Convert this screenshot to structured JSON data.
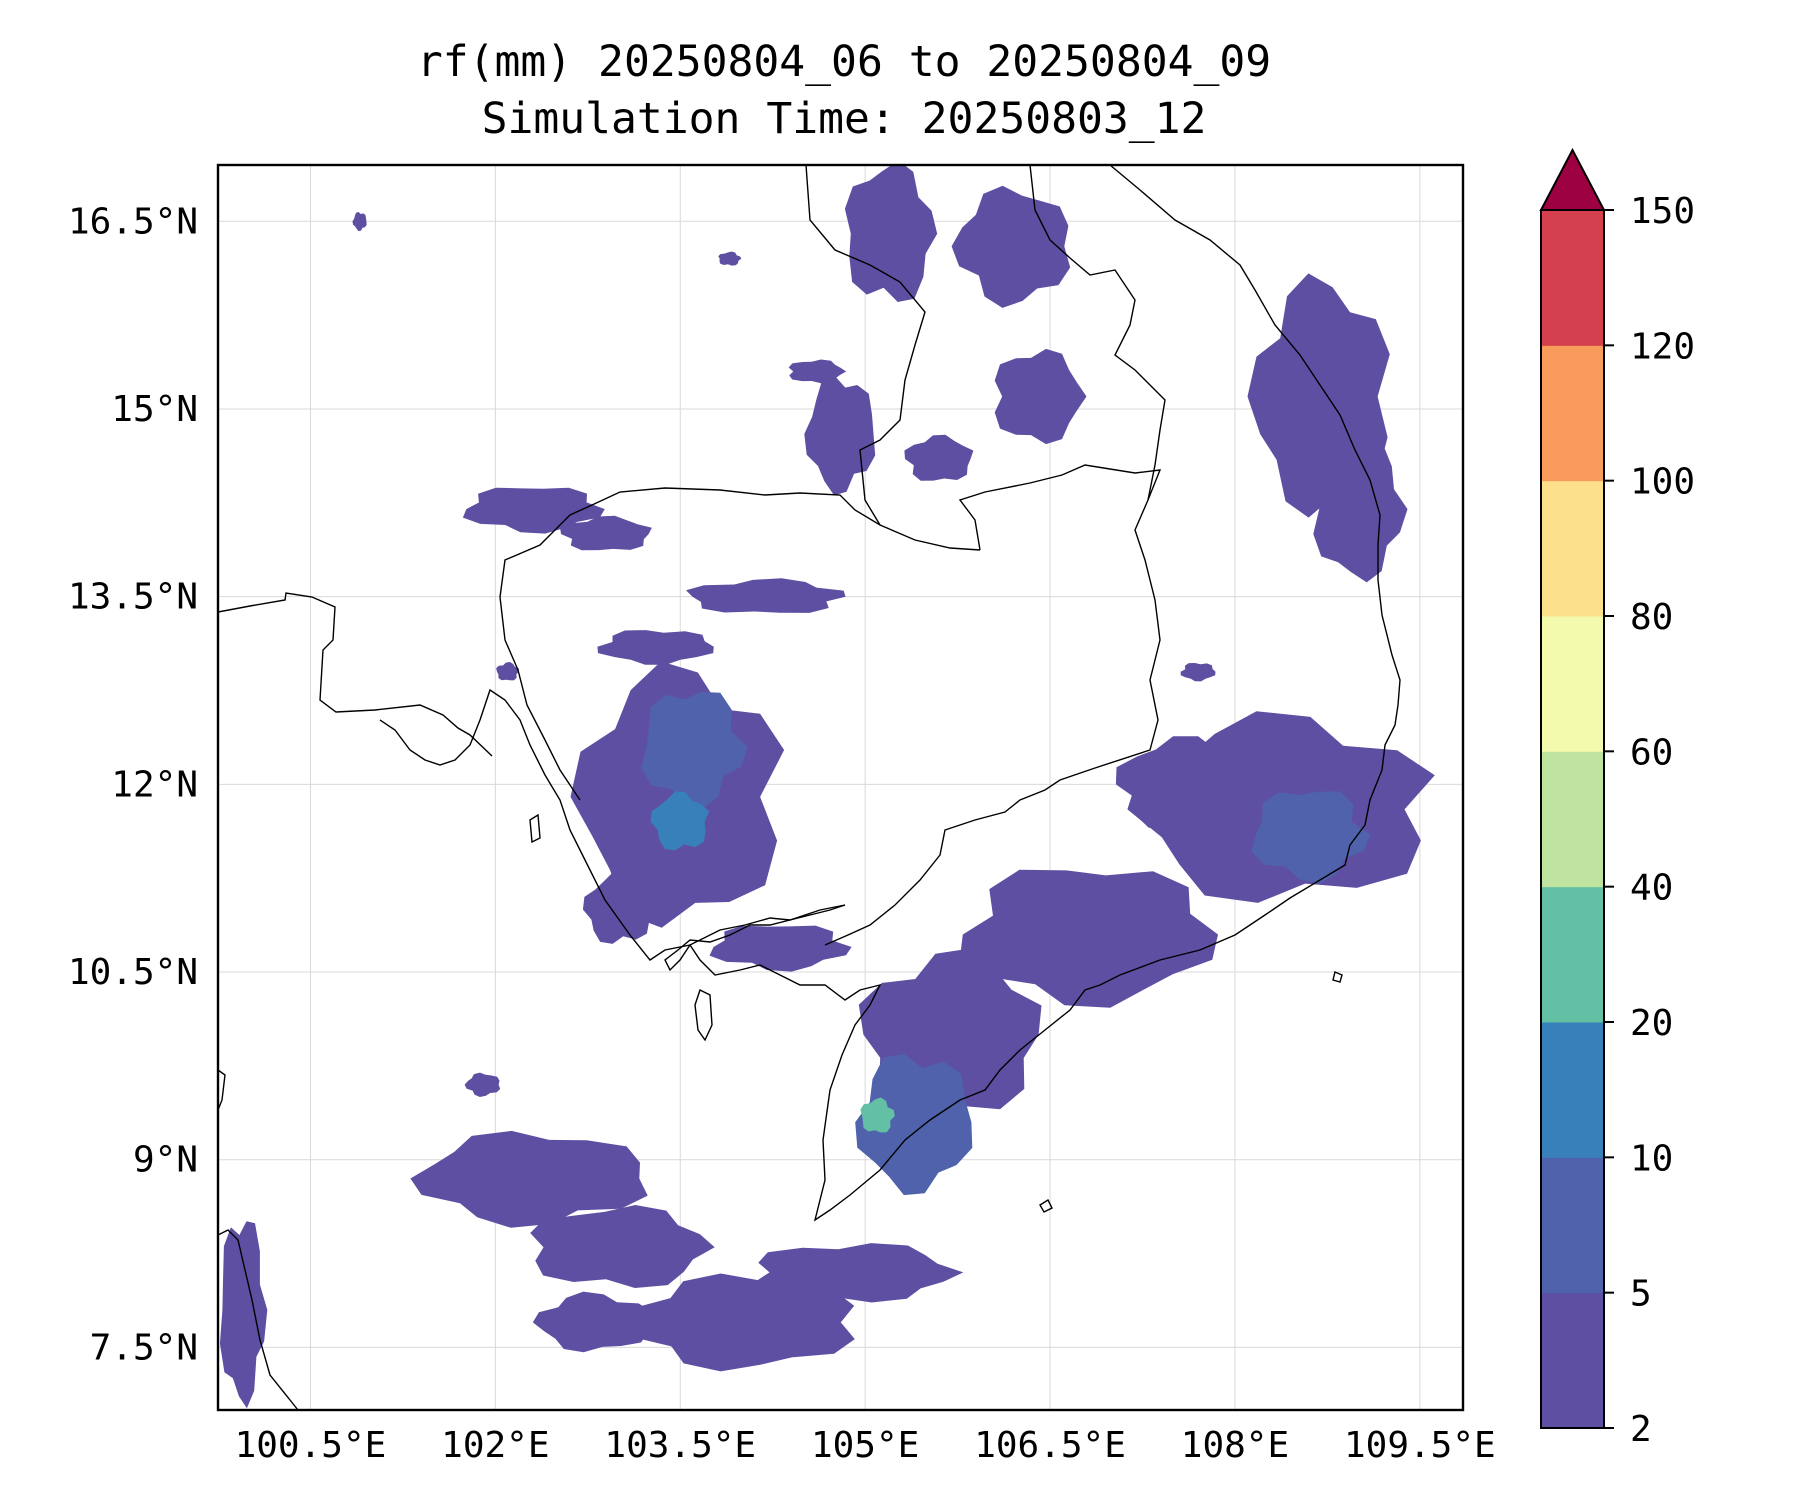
{
  "title": {
    "line1": "rf(mm) 20250804_06 to 20250804_09",
    "line2": "Simulation Time: 20250803_12"
  },
  "map": {
    "lon_range": [
      99.75,
      109.85
    ],
    "lat_range": [
      7.0,
      16.95
    ],
    "gridlines": true,
    "x_ticks": [
      {
        "value": 100.5,
        "label": "100.5°E"
      },
      {
        "value": 102.0,
        "label": "102°E"
      },
      {
        "value": 103.5,
        "label": "103.5°E"
      },
      {
        "value": 105.0,
        "label": "105°E"
      },
      {
        "value": 106.5,
        "label": "106.5°E"
      },
      {
        "value": 108.0,
        "label": "108°E"
      },
      {
        "value": 109.5,
        "label": "109.5°E"
      }
    ],
    "y_ticks": [
      {
        "value": 7.5,
        "label": "7.5°N"
      },
      {
        "value": 9.0,
        "label": "9°N"
      },
      {
        "value": 10.5,
        "label": "10.5°N"
      },
      {
        "value": 12.0,
        "label": "12°N"
      },
      {
        "value": 13.5,
        "label": "13.5°N"
      },
      {
        "value": 15.0,
        "label": "15°N"
      },
      {
        "value": 16.5,
        "label": "16.5°N"
      }
    ]
  },
  "colorbar": {
    "extend": "max",
    "levels": [
      {
        "label": "2",
        "color": "#5e4fa2"
      },
      {
        "label": "5",
        "color": "#4f62ab"
      },
      {
        "label": "10",
        "color": "#3880b9"
      },
      {
        "label": "20",
        "color": "#63c0a5"
      },
      {
        "label": "40",
        "color": "#bfe4a0"
      },
      {
        "label": "60",
        "color": "#f4faad"
      },
      {
        "label": "80",
        "color": "#fde08a"
      },
      {
        "label": "100",
        "color": "#f99b5b"
      },
      {
        "label": "120",
        "color": "#d4404e"
      },
      {
        "label": "150",
        "color": "#9e0142"
      }
    ]
  },
  "rain_areas": [
    {
      "lon": 103.5,
      "lat": 11.9,
      "rx": 0.9,
      "ry": 1.1,
      "level": 0
    },
    {
      "lon": 103.6,
      "lat": 12.3,
      "rx": 0.45,
      "ry": 0.5,
      "level": 1
    },
    {
      "lon": 103.5,
      "lat": 11.7,
      "rx": 0.25,
      "ry": 0.25,
      "level": 2
    },
    {
      "lon": 102.3,
      "lat": 14.2,
      "rx": 0.6,
      "ry": 0.2,
      "level": 0
    },
    {
      "lon": 102.9,
      "lat": 14.0,
      "rx": 0.4,
      "ry": 0.15,
      "level": 0
    },
    {
      "lon": 103.3,
      "lat": 13.1,
      "rx": 0.5,
      "ry": 0.15,
      "level": 0
    },
    {
      "lon": 104.2,
      "lat": 13.5,
      "rx": 0.7,
      "ry": 0.15,
      "level": 0
    },
    {
      "lon": 104.8,
      "lat": 14.8,
      "rx": 0.3,
      "ry": 0.5,
      "level": 0
    },
    {
      "lon": 105.2,
      "lat": 16.4,
      "rx": 0.4,
      "ry": 0.6,
      "level": 0
    },
    {
      "lon": 106.2,
      "lat": 16.3,
      "rx": 0.5,
      "ry": 0.5,
      "level": 0
    },
    {
      "lon": 106.4,
      "lat": 15.1,
      "rx": 0.4,
      "ry": 0.4,
      "level": 0
    },
    {
      "lon": 108.7,
      "lat": 15.1,
      "rx": 0.6,
      "ry": 1.0,
      "level": 0
    },
    {
      "lon": 109.0,
      "lat": 14.2,
      "rx": 0.4,
      "ry": 0.6,
      "level": 0
    },
    {
      "lon": 108.4,
      "lat": 11.8,
      "rx": 1.3,
      "ry": 0.8,
      "level": 0
    },
    {
      "lon": 108.6,
      "lat": 11.6,
      "rx": 0.5,
      "ry": 0.4,
      "level": 1
    },
    {
      "lon": 107.6,
      "lat": 12.0,
      "rx": 0.6,
      "ry": 0.4,
      "level": 0
    },
    {
      "lon": 106.8,
      "lat": 10.8,
      "rx": 1.1,
      "ry": 0.6,
      "level": 0
    },
    {
      "lon": 105.7,
      "lat": 10.0,
      "rx": 0.8,
      "ry": 0.7,
      "level": 0
    },
    {
      "lon": 105.4,
      "lat": 9.3,
      "rx": 0.5,
      "ry": 0.6,
      "level": 1
    },
    {
      "lon": 105.1,
      "lat": 9.35,
      "rx": 0.15,
      "ry": 0.15,
      "level": 3
    },
    {
      "lon": 102.3,
      "lat": 8.85,
      "rx": 1.0,
      "ry": 0.4,
      "level": 0
    },
    {
      "lon": 103.0,
      "lat": 8.3,
      "rx": 0.8,
      "ry": 0.35,
      "level": 0
    },
    {
      "lon": 104.0,
      "lat": 7.7,
      "rx": 1.0,
      "ry": 0.4,
      "level": 0
    },
    {
      "lon": 104.9,
      "lat": 8.1,
      "rx": 0.9,
      "ry": 0.25,
      "level": 0
    },
    {
      "lon": 102.8,
      "lat": 7.7,
      "rx": 0.5,
      "ry": 0.25,
      "level": 0
    },
    {
      "lon": 99.95,
      "lat": 7.8,
      "rx": 0.2,
      "ry": 0.8,
      "level": 0
    },
    {
      "lon": 103.0,
      "lat": 11.0,
      "rx": 0.3,
      "ry": 0.3,
      "level": 0
    },
    {
      "lon": 104.3,
      "lat": 10.7,
      "rx": 0.6,
      "ry": 0.2,
      "level": 0
    },
    {
      "lon": 105.6,
      "lat": 14.6,
      "rx": 0.3,
      "ry": 0.2,
      "level": 0
    },
    {
      "lon": 107.7,
      "lat": 12.9,
      "rx": 0.15,
      "ry": 0.08,
      "level": 0
    },
    {
      "lon": 102.1,
      "lat": 12.9,
      "rx": 0.1,
      "ry": 0.08,
      "level": 0
    },
    {
      "lon": 100.9,
      "lat": 16.5,
      "rx": 0.06,
      "ry": 0.08,
      "level": 0
    },
    {
      "lon": 103.9,
      "lat": 16.2,
      "rx": 0.1,
      "ry": 0.06,
      "level": 0
    },
    {
      "lon": 101.9,
      "lat": 9.6,
      "rx": 0.15,
      "ry": 0.1,
      "level": 0
    },
    {
      "lon": 104.6,
      "lat": 15.3,
      "rx": 0.25,
      "ry": 0.1,
      "level": 0
    }
  ]
}
